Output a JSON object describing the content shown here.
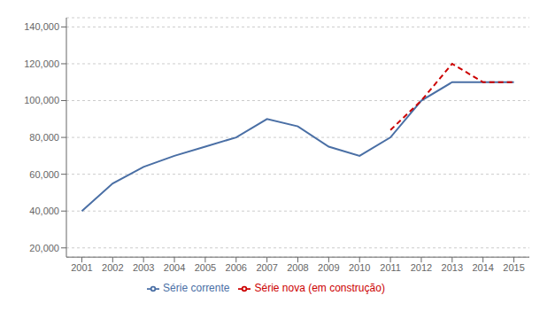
{
  "chart_data": {
    "type": "line",
    "x": [
      2001,
      2002,
      2003,
      2004,
      2005,
      2006,
      2007,
      2008,
      2009,
      2010,
      2011,
      2012,
      2013,
      2014,
      2015
    ],
    "series": [
      {
        "name": "Série corrente",
        "color": "#4a6fa5",
        "line_style": "solid",
        "values": [
          40000,
          55000,
          64000,
          70000,
          75000,
          80000,
          90000,
          86000,
          75000,
          70000,
          80000,
          100000,
          110000,
          110000,
          110000
        ]
      },
      {
        "name": "Série nova (em construção)",
        "color": "#cc0000",
        "line_style": "dashed",
        "values": [
          null,
          null,
          null,
          null,
          null,
          null,
          null,
          null,
          null,
          null,
          84000,
          100000,
          120000,
          110000,
          110000
        ]
      }
    ],
    "xlim": [
      2000.5,
      2015.5
    ],
    "xticks": [
      2001,
      2002,
      2003,
      2004,
      2005,
      2006,
      2007,
      2008,
      2009,
      2010,
      2011,
      2012,
      2013,
      2014,
      2015
    ],
    "ylim": [
      15000,
      145000
    ],
    "yticks": [
      {
        "value": 20000,
        "label": "20,000"
      },
      {
        "value": 40000,
        "label": "40,000"
      },
      {
        "value": 60000,
        "label": "60,000"
      },
      {
        "value": 80000,
        "label": "80,000"
      },
      {
        "value": 100000,
        "label": "100,000"
      },
      {
        "value": 120000,
        "label": "120,000"
      },
      {
        "value": 140000,
        "label": "140,000"
      }
    ],
    "grid": true,
    "legend": "bottom"
  }
}
